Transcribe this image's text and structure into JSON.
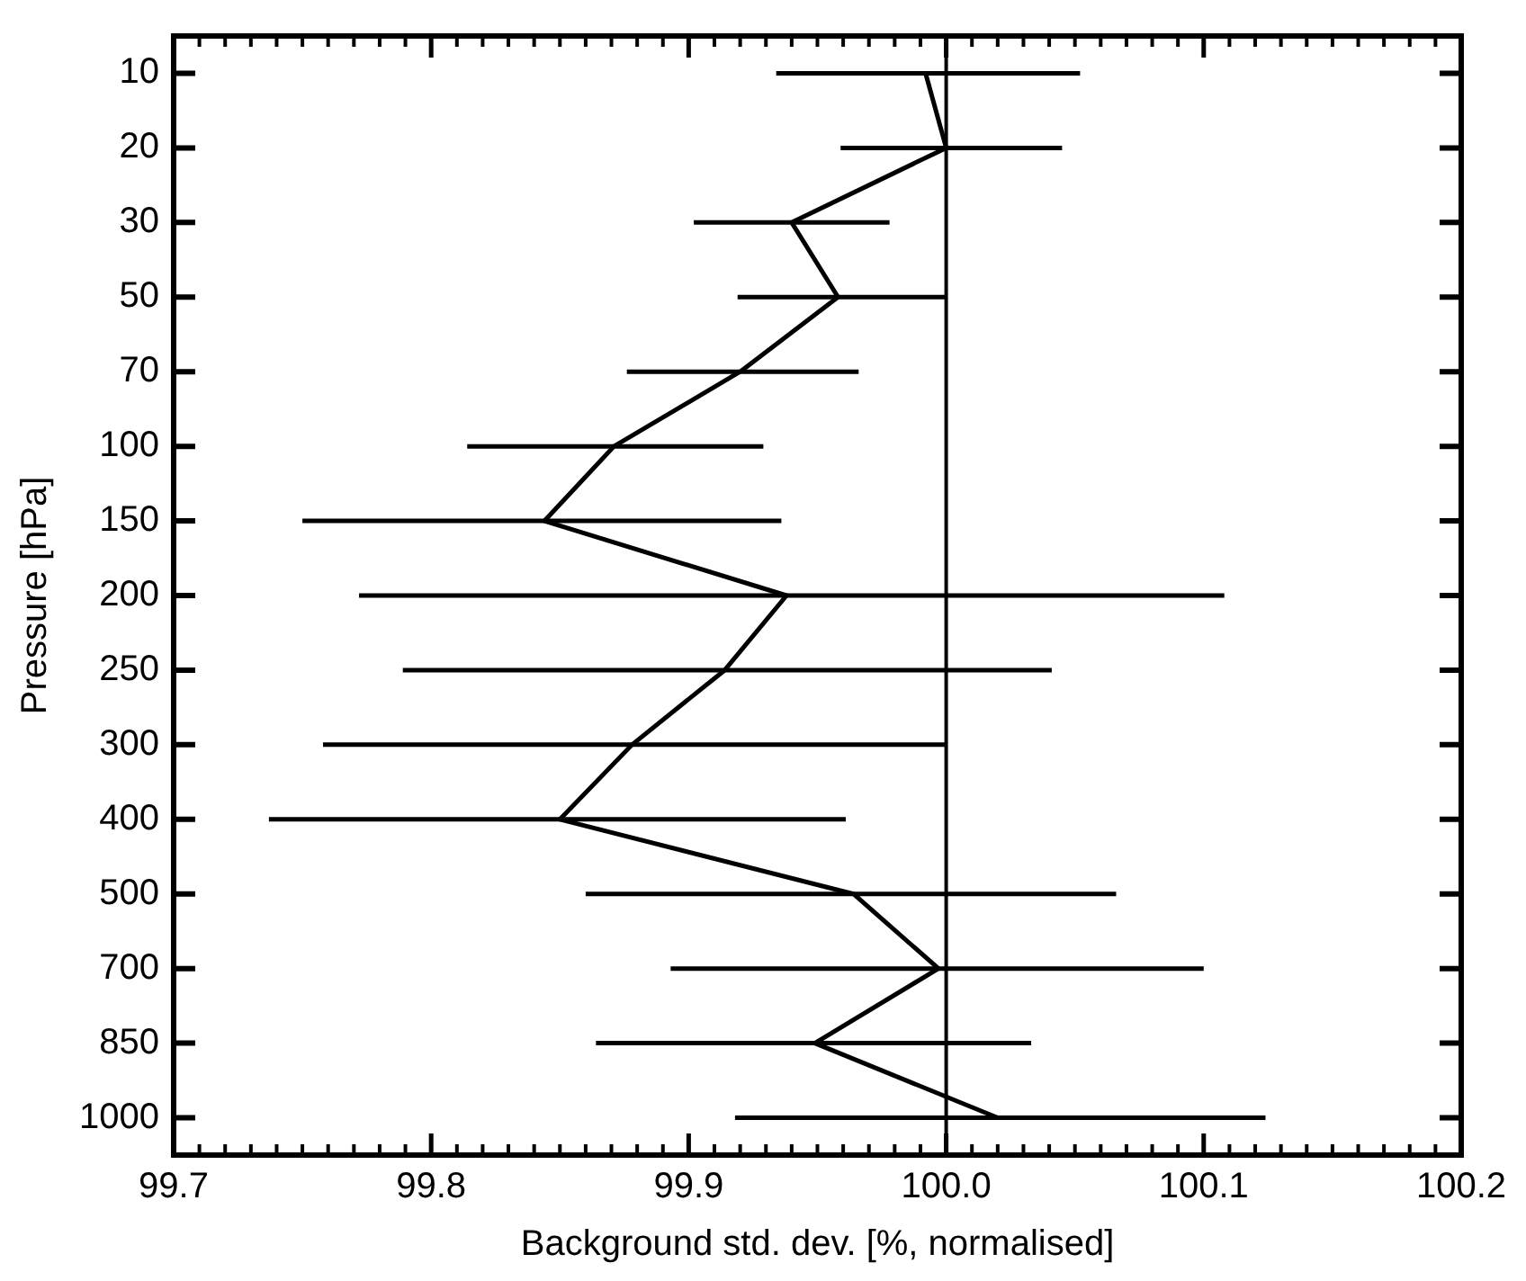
{
  "chart_data": {
    "type": "line",
    "xlabel": "Background std. dev. [%, normalised]",
    "ylabel": "Pressure [hPa]",
    "categories": [
      "10",
      "20",
      "30",
      "50",
      "70",
      "100",
      "150",
      "200",
      "250",
      "300",
      "400",
      "500",
      "700",
      "850",
      "1000"
    ],
    "orientation": "horizontal",
    "series": [
      {
        "color": "#000000",
        "values": [
          99.992,
          100.0,
          99.94,
          99.958,
          99.92,
          99.871,
          99.844,
          99.938,
          99.914,
          99.878,
          99.85,
          99.964,
          99.997,
          99.949,
          100.02
        ],
        "errors": [
          [
            99.934,
            100.052
          ],
          [
            99.959,
            100.045
          ],
          [
            99.902,
            99.978
          ],
          [
            99.919,
            100.0
          ],
          [
            99.876,
            99.966
          ],
          [
            99.814,
            99.929
          ],
          [
            99.75,
            99.936
          ],
          [
            99.772,
            100.108
          ],
          [
            99.789,
            100.041
          ],
          [
            99.758,
            100.0
          ],
          [
            99.737,
            99.961
          ],
          [
            99.86,
            100.066
          ],
          [
            99.893,
            100.1
          ],
          [
            99.864,
            100.033
          ],
          [
            99.918,
            100.124
          ]
        ]
      }
    ],
    "xlim": [
      99.7,
      100.2
    ],
    "xticks": [
      {
        "value": 99.7,
        "label": "99.7"
      },
      {
        "value": 99.8,
        "label": "99.8"
      },
      {
        "value": 99.9,
        "label": "99.9"
      },
      {
        "value": 100.0,
        "label": "100.0"
      },
      {
        "value": 100.1,
        "label": "100.1"
      },
      {
        "value": 100.2,
        "label": "100.2"
      }
    ],
    "ref_lines": [
      {
        "axis": "x",
        "value": 100.0,
        "color": "#000000"
      }
    ],
    "marker": "none",
    "line_style": "solid",
    "grid": false,
    "legend": false
  }
}
